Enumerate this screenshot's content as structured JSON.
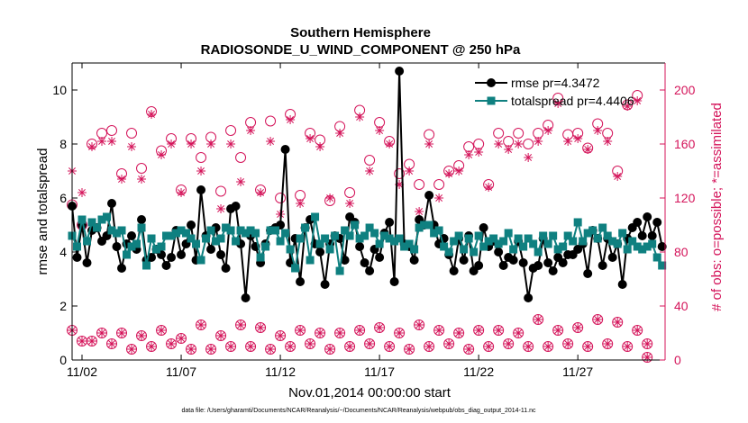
{
  "chart_data": {
    "type": "line",
    "title": "Southern Hemisphere",
    "subtitle": "RADIOSONDE_U_WIND_COMPONENT @ 250 hPa",
    "xlabel": "Nov.01,2014 00:00:00 start",
    "ylabel_left": "rmse and totalspread",
    "ylabel_right": "# of obs: o=possible; *=assimilated",
    "footer": "data file: /Users/gharamti/Documents/NCAR/Reanalysis/~/Documents/NCAR/Reanalysis/webpub/obs_diag_output_2014-11.nc",
    "xtick_labels": [
      "11/02",
      "11/07",
      "11/12",
      "11/17",
      "11/22",
      "11/27"
    ],
    "xticks": [
      2,
      7,
      12,
      17,
      22,
      27
    ],
    "xlim": [
      1.5,
      31.4
    ],
    "ylim_left": [
      0,
      11
    ],
    "yticks_left": [
      0,
      2,
      4,
      6,
      8,
      10
    ],
    "ylim_right": [
      0,
      220
    ],
    "yticks_right": [
      0,
      40,
      80,
      120,
      160,
      200
    ],
    "colors": {
      "rmse": "#000000",
      "spread": "#0f8080",
      "obs": "#d4145a",
      "axis_right": "#d4145a"
    },
    "legend_position": "top-right",
    "x": [
      1.5,
      1.75,
      2.0,
      2.25,
      2.5,
      2.75,
      3.0,
      3.25,
      3.5,
      3.75,
      4.0,
      4.25,
      4.5,
      4.75,
      5.0,
      5.25,
      5.5,
      5.75,
      6.0,
      6.25,
      6.5,
      6.75,
      7.0,
      7.25,
      7.5,
      7.75,
      8.0,
      8.25,
      8.5,
      8.75,
      9.0,
      9.25,
      9.5,
      9.75,
      10.0,
      10.25,
      10.5,
      10.75,
      11.0,
      11.25,
      11.5,
      11.75,
      12.0,
      12.25,
      12.5,
      12.75,
      13.0,
      13.25,
      13.5,
      13.75,
      14.0,
      14.25,
      14.5,
      14.75,
      15.0,
      15.25,
      15.5,
      15.75,
      16.0,
      16.25,
      16.5,
      16.75,
      17.0,
      17.25,
      17.5,
      17.75,
      18.0,
      18.25,
      18.5,
      18.75,
      19.0,
      19.25,
      19.5,
      19.75,
      20.0,
      20.25,
      20.5,
      20.75,
      21.0,
      21.25,
      21.5,
      21.75,
      22.0,
      22.25,
      22.5,
      22.75,
      23.0,
      23.25,
      23.5,
      23.75,
      24.0,
      24.25,
      24.5,
      24.75,
      25.0,
      25.25,
      25.5,
      25.75,
      26.0,
      26.25,
      26.5,
      26.75,
      27.0,
      27.25,
      27.5,
      27.75,
      28.0,
      28.25,
      28.5,
      28.75,
      29.0,
      29.25,
      29.5,
      29.75,
      30.0,
      30.25,
      30.5,
      30.75,
      31.0,
      31.25
    ],
    "series": [
      {
        "name": "rmse pr=4.3472",
        "role": "rmse",
        "axis": "left",
        "marker": "filled-circle",
        "values": [
          5.7,
          3.8,
          5.0,
          3.6,
          4.8,
          4.9,
          4.4,
          4.6,
          5.8,
          4.2,
          3.4,
          4.3,
          4.6,
          4.1,
          5.2,
          3.7,
          3.8,
          4.1,
          3.9,
          3.5,
          3.8,
          4.8,
          3.9,
          4.3,
          5.0,
          3.7,
          6.3,
          4.6,
          4.1,
          4.9,
          3.9,
          3.4,
          5.6,
          5.7,
          4.3,
          2.3,
          4.6,
          4.2,
          3.6,
          4.3,
          4.8,
          4.9,
          5.0,
          7.8,
          3.6,
          4.5,
          2.9,
          4.9,
          5.2,
          4.3,
          4.0,
          2.8,
          4.3,
          4.6,
          4.5,
          3.7,
          5.3,
          5.1,
          4.2,
          3.6,
          3.3,
          4.1,
          3.8,
          4.7,
          5.1,
          2.9,
          10.7,
          4.3,
          4.2,
          3.7,
          5.2,
          5.0,
          6.1,
          5.0,
          4.3,
          4.5,
          3.9,
          3.3,
          4.5,
          3.7,
          4.6,
          3.3,
          3.5,
          4.9,
          4.2,
          4.4,
          4.0,
          3.5,
          3.8,
          3.7,
          4.4,
          3.6,
          2.3,
          3.4,
          3.5,
          4.5,
          3.6,
          3.3,
          3.8,
          3.6,
          3.9,
          3.9,
          4.1,
          4.3,
          3.2,
          4.8,
          4.5,
          3.5,
          4.5,
          3.8,
          4.3,
          2.8,
          4.5,
          4.9,
          5.1,
          4.6,
          5.3,
          4.6,
          5.1,
          4.2
        ]
      },
      {
        "name": "totalspread pr=4.4406",
        "role": "spread",
        "axis": "left",
        "marker": "filled-square",
        "values": [
          4.6,
          4.2,
          5.2,
          4.4,
          5.1,
          4.9,
          5.2,
          5.3,
          4.8,
          4.7,
          4.8,
          3.9,
          4.2,
          4.3,
          4.9,
          3.5,
          4.5,
          4.1,
          4.2,
          4.6,
          4.6,
          4.7,
          4.8,
          4.7,
          4.5,
          4.3,
          3.7,
          4.5,
          4.8,
          4.4,
          4.5,
          4.9,
          4.8,
          4.4,
          4.8,
          4.7,
          4.8,
          4.7,
          3.8,
          4.2,
          4.8,
          4.8,
          4.4,
          4.7,
          4.1,
          3.4,
          4.5,
          4.9,
          3.7,
          5.3,
          4.3,
          4.5,
          4.1,
          4.6,
          3.3,
          4.8,
          4.6,
          5.0,
          4.5,
          4.6,
          4.9,
          4.7,
          4.3,
          4.6,
          4.5,
          4.4,
          4.5,
          4.2,
          4.3,
          4.1,
          4.9,
          5.0,
          5.0,
          4.7,
          4.8,
          4.2,
          4.0,
          4.4,
          4.6,
          4.1,
          4.5,
          4.0,
          4.6,
          4.2,
          4.4,
          4.5,
          4.3,
          4.4,
          4.7,
          4.1,
          4.5,
          4.2,
          4.5,
          4.3,
          4.0,
          4.6,
          4.3,
          4.6,
          4.1,
          4.2,
          4.6,
          4.4,
          5.1,
          4.4,
          4.7,
          4.8,
          4.5,
          4.9,
          4.6,
          4.4,
          4.3,
          4.7,
          4.1,
          4.4,
          4.2,
          4.1,
          4.2,
          4.3,
          3.8,
          3.5
        ]
      }
    ],
    "obs_possible": [
      [
        1.5,
        115
      ],
      [
        2.0,
        100
      ],
      [
        2.5,
        160
      ],
      [
        3.0,
        168
      ],
      [
        3.5,
        170
      ],
      [
        4.0,
        138
      ],
      [
        4.5,
        168
      ],
      [
        5.0,
        142
      ],
      [
        5.5,
        184
      ],
      [
        6.0,
        155
      ],
      [
        6.5,
        164
      ],
      [
        7.0,
        126
      ],
      [
        7.5,
        164
      ],
      [
        8.0,
        150
      ],
      [
        8.5,
        165
      ],
      [
        9.0,
        125
      ],
      [
        9.5,
        170
      ],
      [
        10.0,
        150
      ],
      [
        10.5,
        176
      ],
      [
        11.0,
        126
      ],
      [
        11.5,
        177
      ],
      [
        12.0,
        120
      ],
      [
        12.5,
        182
      ],
      [
        13.0,
        122
      ],
      [
        13.5,
        168
      ],
      [
        14.0,
        163
      ],
      [
        14.5,
        118
      ],
      [
        15.0,
        173
      ],
      [
        15.5,
        124
      ],
      [
        16.0,
        185
      ],
      [
        16.5,
        148
      ],
      [
        17.0,
        176
      ],
      [
        17.5,
        162
      ],
      [
        18.0,
        138
      ],
      [
        18.5,
        145
      ],
      [
        19.0,
        130
      ],
      [
        19.5,
        167
      ],
      [
        20.0,
        130
      ],
      [
        20.5,
        140
      ],
      [
        21.0,
        144
      ],
      [
        21.5,
        158
      ],
      [
        22.0,
        160
      ],
      [
        22.5,
        130
      ],
      [
        23.0,
        168
      ],
      [
        23.5,
        162
      ],
      [
        24.0,
        168
      ],
      [
        24.5,
        160
      ],
      [
        25.0,
        168
      ],
      [
        25.5,
        174
      ],
      [
        26.0,
        194
      ],
      [
        26.5,
        167
      ],
      [
        27.0,
        168
      ],
      [
        27.5,
        157
      ],
      [
        28.0,
        175
      ],
      [
        28.5,
        168
      ],
      [
        29.0,
        140
      ],
      [
        29.5,
        189
      ],
      [
        30.0,
        196
      ],
      [
        30.5,
        2
      ]
    ],
    "obs_assimilated": [
      [
        1.5,
        140
      ],
      [
        2.0,
        124
      ],
      [
        2.5,
        158
      ],
      [
        3.0,
        162
      ],
      [
        3.5,
        162
      ],
      [
        4.0,
        134
      ],
      [
        4.5,
        158
      ],
      [
        5.0,
        134
      ],
      [
        5.5,
        182
      ],
      [
        6.0,
        152
      ],
      [
        6.5,
        160
      ],
      [
        7.0,
        124
      ],
      [
        7.5,
        160
      ],
      [
        8.0,
        140
      ],
      [
        8.5,
        160
      ],
      [
        9.0,
        112
      ],
      [
        9.5,
        160
      ],
      [
        10.0,
        132
      ],
      [
        10.5,
        170
      ],
      [
        11.0,
        124
      ],
      [
        11.5,
        162
      ],
      [
        12.0,
        108
      ],
      [
        12.5,
        178
      ],
      [
        13.0,
        116
      ],
      [
        13.5,
        164
      ],
      [
        14.0,
        158
      ],
      [
        14.5,
        120
      ],
      [
        15.0,
        168
      ],
      [
        15.5,
        116
      ],
      [
        16.0,
        180
      ],
      [
        16.5,
        140
      ],
      [
        17.0,
        170
      ],
      [
        17.5,
        160
      ],
      [
        18.0,
        130
      ],
      [
        18.5,
        140
      ],
      [
        19.0,
        110
      ],
      [
        19.5,
        160
      ],
      [
        20.0,
        120
      ],
      [
        20.5,
        138
      ],
      [
        21.0,
        140
      ],
      [
        21.5,
        152
      ],
      [
        22.0,
        154
      ],
      [
        22.5,
        128
      ],
      [
        23.0,
        160
      ],
      [
        23.5,
        156
      ],
      [
        24.0,
        160
      ],
      [
        24.5,
        150
      ],
      [
        25.0,
        162
      ],
      [
        25.5,
        170
      ],
      [
        26.0,
        190
      ],
      [
        26.5,
        162
      ],
      [
        27.0,
        164
      ],
      [
        27.5,
        156
      ],
      [
        28.0,
        170
      ],
      [
        28.5,
        162
      ],
      [
        29.0,
        136
      ],
      [
        29.5,
        188
      ],
      [
        30.0,
        192
      ],
      [
        30.5,
        2
      ]
    ],
    "obs_low_possible": [
      [
        1.5,
        22
      ],
      [
        2.0,
        14
      ],
      [
        2.5,
        14
      ],
      [
        3.0,
        20
      ],
      [
        3.5,
        12
      ],
      [
        4.0,
        20
      ],
      [
        4.5,
        8
      ],
      [
        5.0,
        18
      ],
      [
        5.5,
        10
      ],
      [
        6.0,
        22
      ],
      [
        6.5,
        12
      ],
      [
        7.0,
        16
      ],
      [
        7.5,
        8
      ],
      [
        8.0,
        26
      ],
      [
        8.5,
        8
      ],
      [
        9.0,
        18
      ],
      [
        9.5,
        10
      ],
      [
        10.0,
        26
      ],
      [
        10.5,
        10
      ],
      [
        11.0,
        24
      ],
      [
        11.5,
        8
      ],
      [
        12.0,
        18
      ],
      [
        12.5,
        10
      ],
      [
        13.0,
        22
      ],
      [
        13.5,
        12
      ],
      [
        14.0,
        20
      ],
      [
        14.5,
        8
      ],
      [
        15.0,
        20
      ],
      [
        15.5,
        10
      ],
      [
        16.0,
        22
      ],
      [
        16.5,
        12
      ],
      [
        17.0,
        24
      ],
      [
        17.5,
        10
      ],
      [
        18.0,
        20
      ],
      [
        18.5,
        8
      ],
      [
        19.0,
        26
      ],
      [
        19.5,
        10
      ],
      [
        20.0,
        22
      ],
      [
        20.5,
        12
      ],
      [
        21.0,
        20
      ],
      [
        21.5,
        8
      ],
      [
        22.0,
        22
      ],
      [
        22.5,
        10
      ],
      [
        23.0,
        22
      ],
      [
        23.5,
        12
      ],
      [
        24.0,
        20
      ],
      [
        24.5,
        10
      ],
      [
        25.0,
        30
      ],
      [
        25.5,
        10
      ],
      [
        26.0,
        22
      ],
      [
        26.5,
        12
      ],
      [
        27.0,
        24
      ],
      [
        27.5,
        10
      ],
      [
        28.0,
        30
      ],
      [
        28.5,
        12
      ],
      [
        29.0,
        28
      ],
      [
        29.5,
        10
      ],
      [
        30.0,
        22
      ],
      [
        30.5,
        12
      ]
    ],
    "obs_low_assimilated": [
      [
        1.5,
        22
      ],
      [
        2.0,
        14
      ],
      [
        2.5,
        14
      ],
      [
        3.0,
        20
      ],
      [
        3.5,
        12
      ],
      [
        4.0,
        20
      ],
      [
        4.5,
        8
      ],
      [
        5.0,
        18
      ],
      [
        5.5,
        10
      ],
      [
        6.0,
        22
      ],
      [
        6.5,
        12
      ],
      [
        7.0,
        16
      ],
      [
        7.5,
        8
      ],
      [
        8.0,
        26
      ],
      [
        8.5,
        8
      ],
      [
        9.0,
        18
      ],
      [
        9.5,
        10
      ],
      [
        10.0,
        26
      ],
      [
        10.5,
        10
      ],
      [
        11.0,
        24
      ],
      [
        11.5,
        8
      ],
      [
        12.0,
        18
      ],
      [
        12.5,
        10
      ],
      [
        13.0,
        22
      ],
      [
        13.5,
        12
      ],
      [
        14.0,
        20
      ],
      [
        14.5,
        8
      ],
      [
        15.0,
        20
      ],
      [
        15.5,
        10
      ],
      [
        16.0,
        22
      ],
      [
        16.5,
        12
      ],
      [
        17.0,
        24
      ],
      [
        17.5,
        10
      ],
      [
        18.0,
        20
      ],
      [
        18.5,
        8
      ],
      [
        19.0,
        26
      ],
      [
        19.5,
        10
      ],
      [
        20.0,
        22
      ],
      [
        20.5,
        12
      ],
      [
        21.0,
        20
      ],
      [
        21.5,
        8
      ],
      [
        22.0,
        22
      ],
      [
        22.5,
        10
      ],
      [
        23.0,
        22
      ],
      [
        23.5,
        12
      ],
      [
        24.0,
        20
      ],
      [
        24.5,
        10
      ],
      [
        25.0,
        30
      ],
      [
        25.5,
        10
      ],
      [
        26.0,
        22
      ],
      [
        26.5,
        12
      ],
      [
        27.0,
        24
      ],
      [
        27.5,
        10
      ],
      [
        28.0,
        30
      ],
      [
        28.5,
        12
      ],
      [
        29.0,
        28
      ],
      [
        29.5,
        10
      ],
      [
        30.0,
        22
      ],
      [
        30.5,
        12
      ]
    ]
  }
}
